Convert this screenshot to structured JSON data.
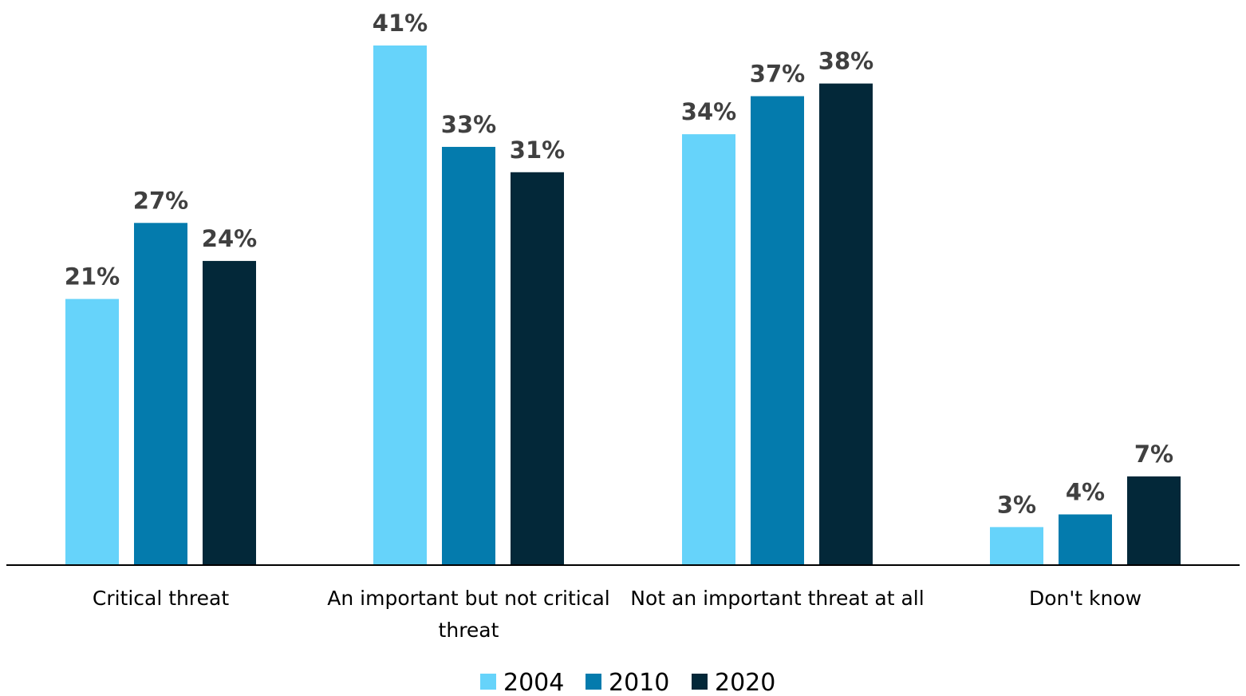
{
  "chart_data": {
    "type": "bar",
    "categories": [
      "Critical threat",
      "An important but not critical threat",
      "Not an important threat at all",
      "Don't know"
    ],
    "category_lines": [
      [
        "Critical threat"
      ],
      [
        "An important but not critical",
        "threat"
      ],
      [
        "Not an important threat at all"
      ],
      [
        "Don't know"
      ]
    ],
    "series": [
      {
        "name": "2004",
        "values": [
          21,
          41,
          34,
          3
        ],
        "labels": [
          "21%",
          "41%",
          "34%",
          "3%"
        ],
        "color": "#66D3FA"
      },
      {
        "name": "2010",
        "values": [
          27,
          33,
          37,
          4
        ],
        "labels": [
          "27%",
          "33%",
          "37%",
          "4%"
        ],
        "color": "#047BAD"
      },
      {
        "name": "2020",
        "values": [
          24,
          31,
          38,
          7
        ],
        "labels": [
          "24%",
          "31%",
          "38%",
          "7%"
        ],
        "color": "#032839"
      }
    ],
    "title": "",
    "xlabel": "",
    "ylabel": "",
    "ylim": [
      0,
      41
    ],
    "grid": false,
    "legend_position": "bottom-center",
    "axis_color": "#000000",
    "label_color": "#404040"
  }
}
